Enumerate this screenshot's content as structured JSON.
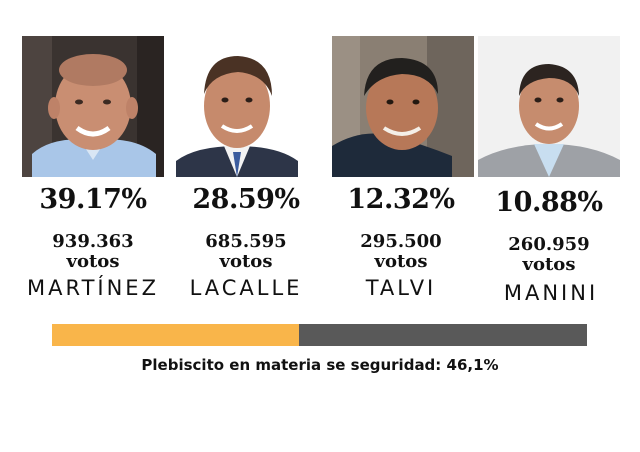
{
  "candidates": [
    {
      "name": "MARTÍNEZ",
      "percent": "39.17%",
      "votes": "939.363",
      "votes_word": "votos",
      "photo": "portrait-martinez"
    },
    {
      "name": "LACALLE",
      "percent": "28.59%",
      "votes": "685.595",
      "votes_word": "votos",
      "photo": "portrait-lacalle"
    },
    {
      "name": "TALVI",
      "percent": "12.32%",
      "votes": "295.500",
      "votes_word": "votos",
      "photo": "portrait-talvi"
    },
    {
      "name": "MANINI",
      "percent": "10.88%",
      "votes": "260.959",
      "votes_word": "votos",
      "photo": "portrait-manini"
    }
  ],
  "plebiscite": {
    "caption": "Plebiscito en materia se seguridad: 46,1%",
    "fraction": 0.461,
    "fill_color": "#f9b54a",
    "track_color": "#595959"
  }
}
